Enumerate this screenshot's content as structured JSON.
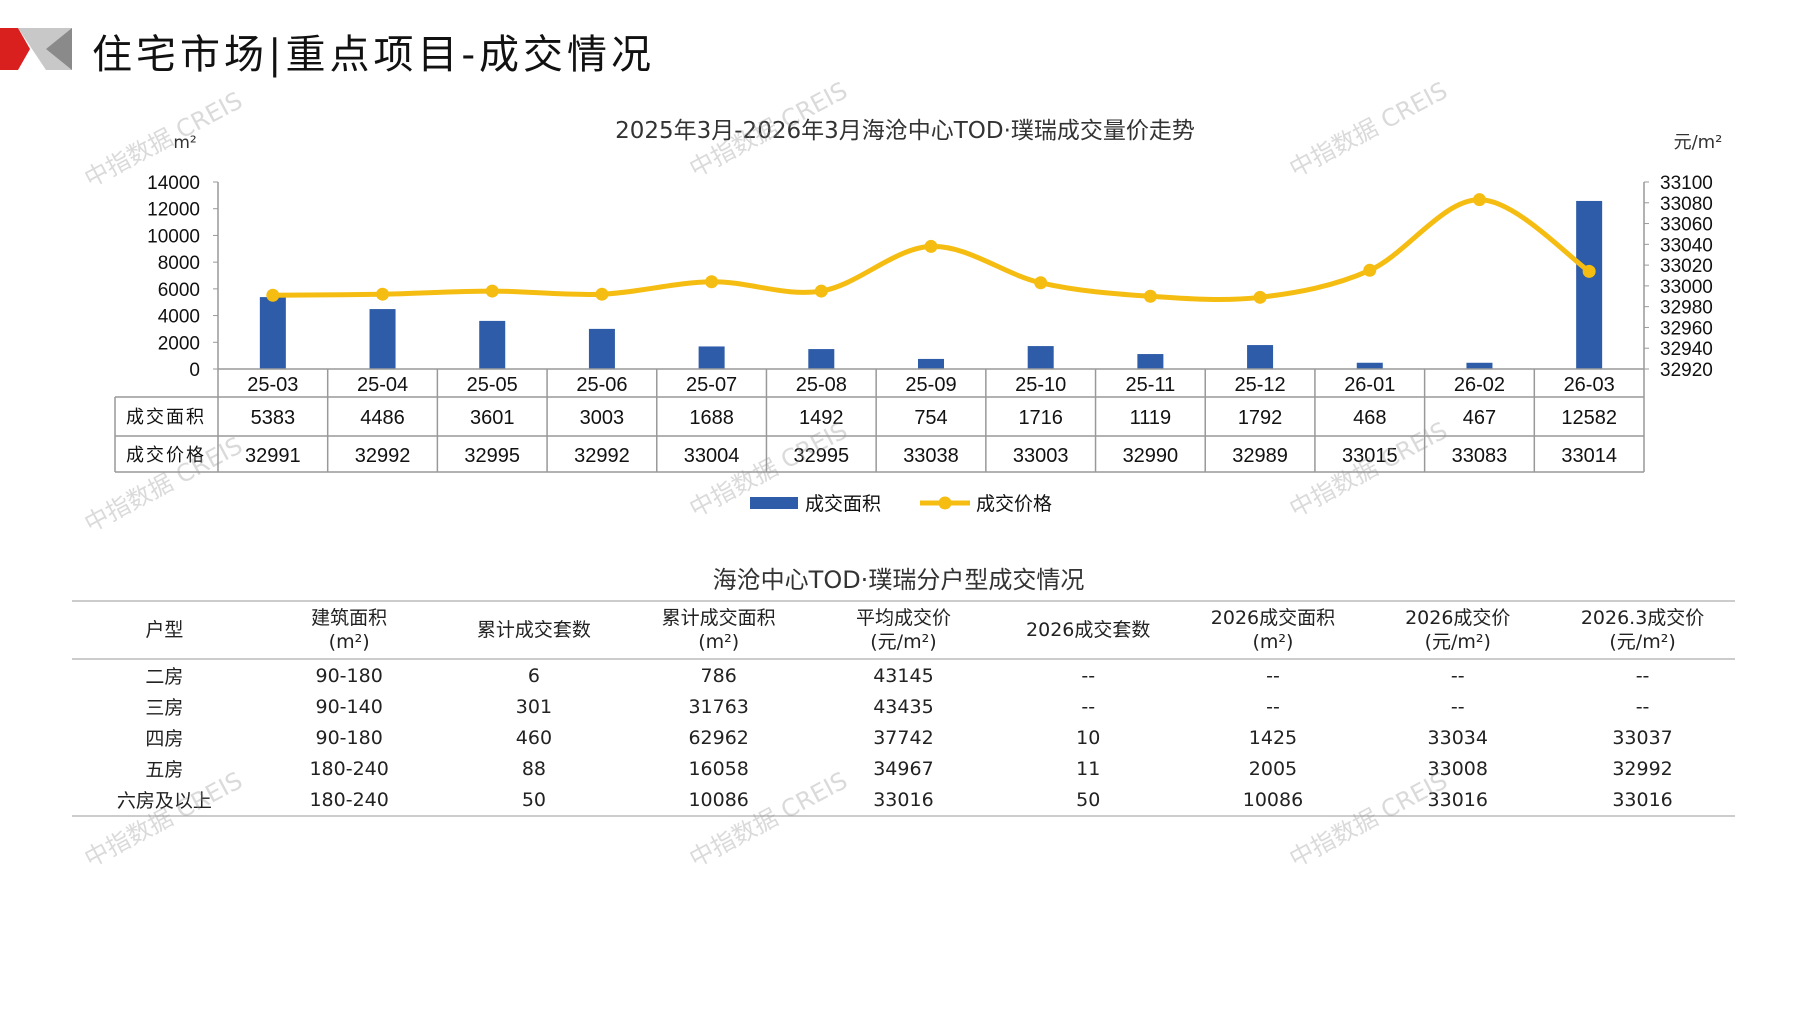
{
  "header": {
    "title": "住宅市场|重点项目-成交情况"
  },
  "watermark": "中指数据 CREIS",
  "colors": {
    "bar": "#2e5ca8",
    "line": "#f5bd12",
    "grid": "#999999",
    "logo_red": "#d9201f",
    "logo_gray": "#b0b0b0"
  },
  "chart_data": {
    "type": "bar+line",
    "title": "2025年3月-2026年3月海沧中心TOD·璞瑞成交量价走势",
    "categories": [
      "25-03",
      "25-04",
      "25-05",
      "25-06",
      "25-07",
      "25-08",
      "25-09",
      "25-10",
      "25-11",
      "25-12",
      "26-01",
      "26-02",
      "26-03"
    ],
    "series": [
      {
        "name": "成交面积",
        "type": "bar",
        "axis": "left",
        "values": [
          5383,
          4486,
          3601,
          3003,
          1688,
          1492,
          754,
          1716,
          1119,
          1792,
          468,
          467,
          12582
        ]
      },
      {
        "name": "成交价格",
        "type": "line",
        "axis": "right",
        "values": [
          32991,
          32992,
          32995,
          32992,
          33004,
          32995,
          33038,
          33003,
          32990,
          32989,
          33015,
          33083,
          33014
        ]
      }
    ],
    "left_axis": {
      "label": "m²",
      "ylim": [
        0,
        14000
      ],
      "ticks": [
        "0",
        "2000",
        "4000",
        "6000",
        "8000",
        "10000",
        "12000",
        "14000"
      ]
    },
    "right_axis": {
      "label": "元/m²",
      "ylim": [
        32920,
        33100
      ],
      "ticks": [
        "32920",
        "32940",
        "32960",
        "32980",
        "33000",
        "33020",
        "33040",
        "33060",
        "33080",
        "33100"
      ]
    },
    "table_row_labels": [
      "成交面积",
      "成交价格"
    ],
    "legend": "bottom"
  },
  "table": {
    "title": "海沧中心TOD·璞瑞分户型成交情况",
    "headers": [
      [
        "户型",
        ""
      ],
      [
        "建筑面积",
        "(m²)"
      ],
      [
        "累计成交套数",
        ""
      ],
      [
        "累计成交面积",
        "(m²)"
      ],
      [
        "平均成交价",
        "(元/m²)"
      ],
      [
        "2026成交套数",
        ""
      ],
      [
        "2026成交面积",
        "(m²)"
      ],
      [
        "2026成交价",
        "(元/m²)"
      ],
      [
        "2026.3成交价",
        "(元/m²)"
      ]
    ],
    "rows": [
      [
        "二房",
        "90-180",
        "6",
        "786",
        "43145",
        "--",
        "--",
        "--",
        "--"
      ],
      [
        "三房",
        "90-140",
        "301",
        "31763",
        "43435",
        "--",
        "--",
        "--",
        "--"
      ],
      [
        "四房",
        "90-180",
        "460",
        "62962",
        "37742",
        "10",
        "1425",
        "33034",
        "33037"
      ],
      [
        "五房",
        "180-240",
        "88",
        "16058",
        "34967",
        "11",
        "2005",
        "33008",
        "32992"
      ],
      [
        "六房及以上",
        "180-240",
        "50",
        "10086",
        "33016",
        "50",
        "10086",
        "33016",
        "33016"
      ]
    ]
  }
}
